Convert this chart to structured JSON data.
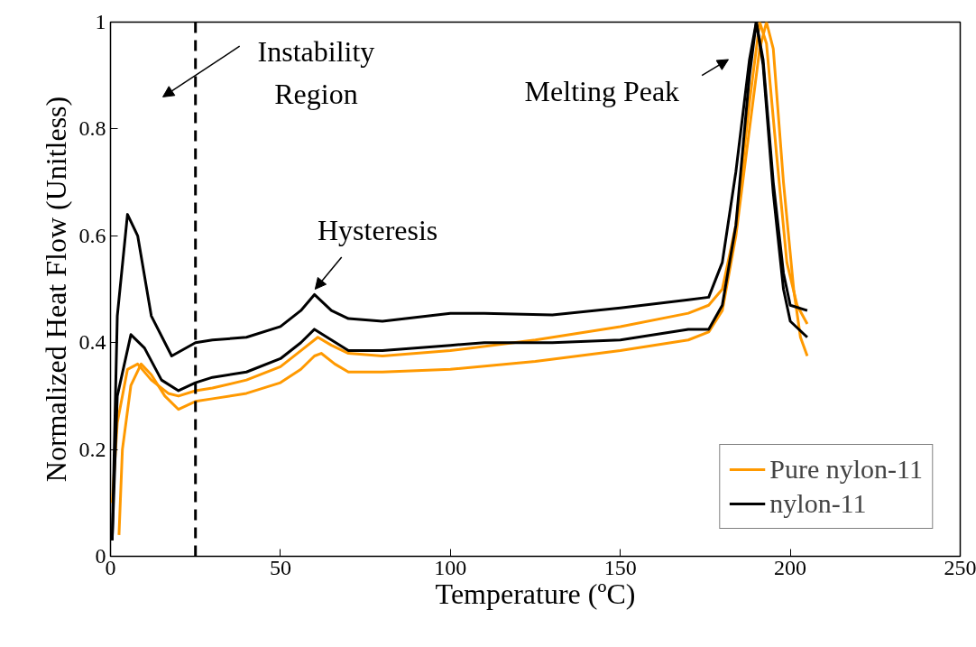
{
  "chart_data": {
    "type": "line",
    "xlabel": "Temperature (ºC)",
    "ylabel": "Normalized Heat Flow (Unitless)",
    "xlim": [
      0,
      250
    ],
    "ylim": [
      0,
      1
    ],
    "xticks": [
      0,
      50,
      100,
      150,
      200,
      250
    ],
    "yticks": [
      0,
      0.2,
      0.4,
      0.6,
      0.8,
      1
    ],
    "grid": false,
    "legend": "bottom right",
    "line_style": "solid",
    "marker": "none",
    "series": [
      {
        "name": "Pure nylon-11",
        "color": "#ff9900",
        "x": [
          0.5,
          2,
          5,
          8,
          12,
          17,
          20,
          25,
          30,
          40,
          50,
          56,
          61,
          65,
          70,
          80,
          100,
          125,
          150,
          170,
          176,
          180,
          184,
          188,
          191,
          193,
          196,
          199,
          202,
          205
        ],
        "values": [
          0.1,
          0.25,
          0.35,
          0.36,
          0.33,
          0.305,
          0.3,
          0.31,
          0.315,
          0.33,
          0.355,
          0.385,
          0.41,
          0.395,
          0.38,
          0.375,
          0.385,
          0.405,
          0.43,
          0.455,
          0.47,
          0.5,
          0.62,
          0.85,
          1.0,
          0.96,
          0.75,
          0.55,
          0.47,
          0.435
        ]
      },
      {
        "color": "#ff9900",
        "x": [
          2.5,
          3.5,
          6,
          9,
          12,
          16,
          20,
          25,
          30,
          40,
          50,
          56,
          60,
          62,
          66,
          70,
          80,
          100,
          125,
          150,
          170,
          176,
          180,
          184,
          188,
          191,
          193,
          195,
          198,
          201,
          203,
          205
        ],
        "values": [
          0.04,
          0.2,
          0.32,
          0.36,
          0.34,
          0.3,
          0.275,
          0.29,
          0.295,
          0.305,
          0.325,
          0.35,
          0.375,
          0.38,
          0.36,
          0.345,
          0.345,
          0.35,
          0.365,
          0.385,
          0.405,
          0.42,
          0.46,
          0.6,
          0.8,
          0.95,
          1.0,
          0.95,
          0.7,
          0.5,
          0.41,
          0.375
        ]
      },
      {
        "name": "nylon-11",
        "color": "#000000",
        "x": [
          0.5,
          2,
          5,
          8,
          12,
          18,
          25,
          30,
          40,
          50,
          56,
          60,
          65,
          70,
          80,
          100,
          110,
          130,
          150,
          170,
          176,
          180,
          184,
          188,
          190,
          192,
          195,
          198,
          200,
          205
        ],
        "values": [
          0.03,
          0.45,
          0.64,
          0.6,
          0.45,
          0.375,
          0.4,
          0.405,
          0.41,
          0.43,
          0.46,
          0.49,
          0.46,
          0.445,
          0.44,
          0.455,
          0.455,
          0.452,
          0.465,
          0.48,
          0.485,
          0.55,
          0.72,
          0.93,
          1.0,
          0.93,
          0.7,
          0.53,
          0.47,
          0.46
        ]
      },
      {
        "color": "#000000",
        "x": [
          0.5,
          2,
          6,
          10,
          15,
          20,
          25,
          30,
          40,
          50,
          56,
          60,
          65,
          70,
          80,
          100,
          110,
          130,
          150,
          170,
          176,
          180,
          184,
          188,
          190,
          192,
          195,
          198,
          200,
          205
        ],
        "values": [
          0.03,
          0.3,
          0.415,
          0.39,
          0.33,
          0.31,
          0.325,
          0.335,
          0.345,
          0.37,
          0.4,
          0.425,
          0.405,
          0.385,
          0.385,
          0.395,
          0.4,
          0.4,
          0.405,
          0.425,
          0.425,
          0.47,
          0.62,
          0.9,
          1.0,
          0.92,
          0.68,
          0.5,
          0.44,
          0.41
        ]
      }
    ],
    "ref_lines": [
      {
        "axis": "x",
        "value": 25,
        "color": "#000000",
        "line_style": "dashed"
      }
    ],
    "annotations": [
      "Instability\nRegion",
      {
        "text": "Hysteresis",
        "x": 60.2,
        "y": 0.5
      },
      "Melting Peak"
    ]
  }
}
